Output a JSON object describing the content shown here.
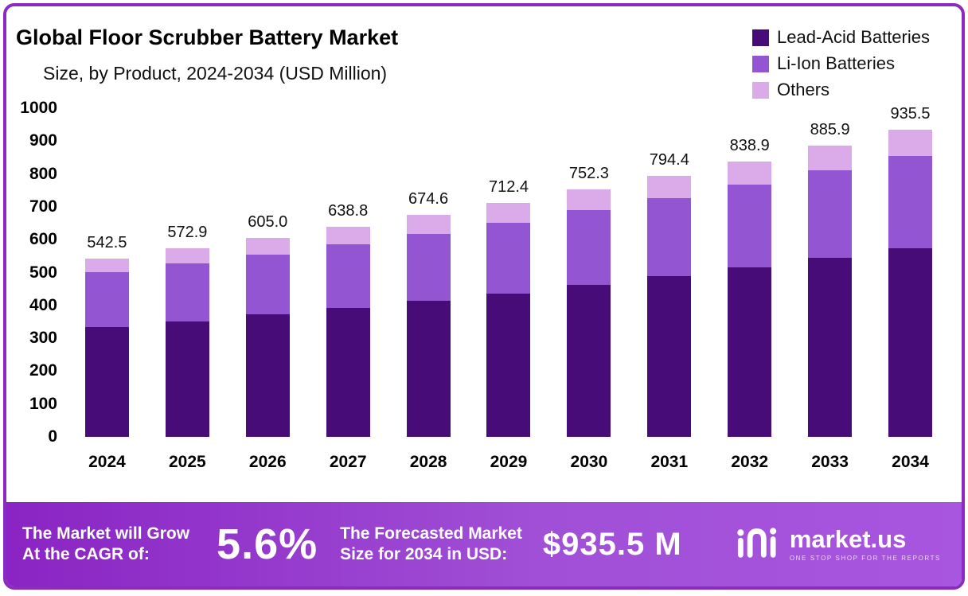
{
  "chart_data": {
    "type": "bar",
    "stacked": true,
    "title": "Global Floor Scrubber Battery Market",
    "subtitle": "Size, by Product, 2024-2034 (USD Million)",
    "categories": [
      "2024",
      "2025",
      "2026",
      "2027",
      "2028",
      "2029",
      "2030",
      "2031",
      "2032",
      "2033",
      "2034"
    ],
    "series": [
      {
        "name": "Lead-Acid Batteries",
        "color": "#470c78",
        "values": [
          333,
          352,
          372,
          393,
          415,
          437,
          462,
          488,
          515,
          544,
          574
        ]
      },
      {
        "name": "Li-Ion Batteries",
        "color": "#9455d3",
        "values": [
          168,
          175,
          183,
          193,
          202,
          214,
          227,
          239,
          252,
          266,
          281
        ]
      },
      {
        "name": "Others",
        "color": "#dbaae8",
        "values": [
          41.5,
          45.9,
          50.0,
          52.8,
          57.6,
          61.4,
          63.3,
          67.4,
          71.9,
          75.9,
          80.5
        ]
      }
    ],
    "totals": [
      "542.5",
      "572.9",
      "605.0",
      "638.8",
      "674.6",
      "712.4",
      "752.3",
      "794.4",
      "838.9",
      "885.9",
      "935.5"
    ],
    "ylim": [
      0,
      1000
    ],
    "yticks": [
      0,
      100,
      200,
      300,
      400,
      500,
      600,
      700,
      800,
      900,
      1000
    ],
    "grid": false,
    "legend_position": "top-right"
  },
  "footer": {
    "cagr_label_line1": "The Market will Grow",
    "cagr_label_line2": "At the CAGR of:",
    "cagr_value": "5.6%",
    "forecast_label_line1": "The Forecasted Market",
    "forecast_label_line2": "Size for 2034 in USD:",
    "forecast_value": "$935.5 M",
    "brand_name": "market.us",
    "brand_tagline": "ONE STOP SHOP FOR THE REPORTS"
  }
}
